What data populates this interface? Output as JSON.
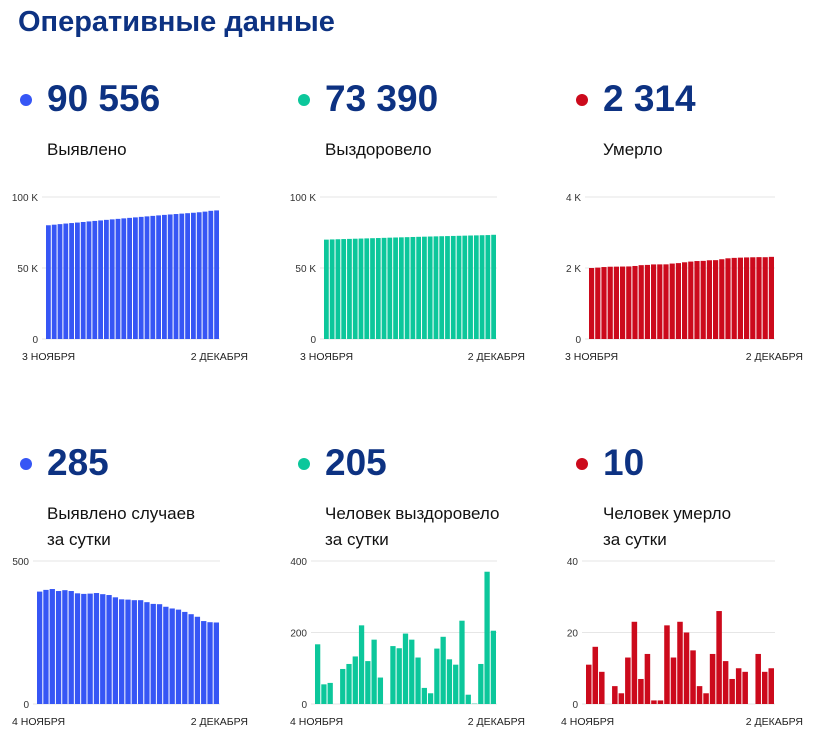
{
  "title": "Оперативные данные",
  "colors": {
    "confirmed": "#3656f5",
    "recovered": "#0cc79b",
    "deaths": "#cc0a1c",
    "title": "#0d3282"
  },
  "cards": [
    {
      "value": "90 556",
      "label": [
        "Выявлено"
      ],
      "color": "#3656f5"
    },
    {
      "value": "73 390",
      "label": [
        "Выздоровело"
      ],
      "color": "#0cc79b"
    },
    {
      "value": "2 314",
      "label": [
        "Умерло"
      ],
      "color": "#cc0a1c"
    },
    {
      "value": "285",
      "label": [
        "Выявлено случаев",
        "за сутки"
      ],
      "color": "#3656f5"
    },
    {
      "value": "205",
      "label": [
        "Человек выздоровело",
        "за сутки"
      ],
      "color": "#0cc79b"
    },
    {
      "value": "10",
      "label": [
        "Человек умерло",
        "за сутки"
      ],
      "color": "#cc0a1c"
    }
  ],
  "chart_data": [
    {
      "type": "bar",
      "title": "Выявлено",
      "color": "#3656f5",
      "ylim": [
        0,
        100000
      ],
      "yticks": [
        0,
        50000,
        100000
      ],
      "ytick_labels": [
        "0",
        "50 K",
        "100 K"
      ],
      "xlabels": [
        "3 НОЯБРЯ",
        "2 ДЕКАБРЯ"
      ],
      "values": [
        80100,
        80500,
        80900,
        81300,
        81650,
        82000,
        82400,
        82800,
        83150,
        83500,
        83900,
        84250,
        84600,
        84950,
        85300,
        85650,
        86000,
        86350,
        86700,
        87050,
        87400,
        87700,
        88000,
        88300,
        88600,
        88900,
        89250,
        89700,
        90271,
        90556
      ]
    },
    {
      "type": "bar",
      "title": "Выздоровело",
      "color": "#0cc79b",
      "ylim": [
        0,
        100000
      ],
      "yticks": [
        0,
        50000,
        100000
      ],
      "ytick_labels": [
        "0",
        "50 K",
        "100 K"
      ],
      "xlabels": [
        "3 НОЯБРЯ",
        "2 ДЕКАБРЯ"
      ],
      "values": [
        69980,
        70120,
        70250,
        70380,
        70500,
        70620,
        70740,
        70860,
        70980,
        71100,
        71230,
        71360,
        71480,
        71600,
        71720,
        71840,
        71950,
        72060,
        72170,
        72280,
        72380,
        72480,
        72580,
        72680,
        72780,
        72880,
        72980,
        73080,
        73185,
        73390
      ]
    },
    {
      "type": "bar",
      "title": "Умерло",
      "color": "#cc0a1c",
      "ylim": [
        0,
        4000
      ],
      "yticks": [
        0,
        2000,
        4000
      ],
      "ytick_labels": [
        "0",
        "2 K",
        "4 K"
      ],
      "xlabels": [
        "3 НОЯБРЯ",
        "2 ДЕКАБРЯ"
      ],
      "values": [
        2000,
        2011,
        2027,
        2036,
        2038,
        2041,
        2044,
        2057,
        2080,
        2087,
        2101,
        2102,
        2103,
        2125,
        2138,
        2161,
        2181,
        2196,
        2201,
        2218,
        2221,
        2247,
        2273,
        2285,
        2292,
        2298,
        2302,
        2306,
        2304,
        2314
      ]
    },
    {
      "type": "bar",
      "title": "Выявлено случаев за сутки",
      "color": "#3656f5",
      "ylim": [
        0,
        500
      ],
      "yticks": [
        0,
        500
      ],
      "ytick_labels": [
        "0",
        "500"
      ],
      "xlabels": [
        "4 НОЯБРЯ",
        "2 ДЕКАБРЯ"
      ],
      "values": [
        393,
        399,
        402,
        395,
        398,
        395,
        387,
        385,
        386,
        388,
        384,
        381,
        373,
        366,
        365,
        363,
        363,
        356,
        350,
        349,
        340,
        334,
        330,
        322,
        314,
        305,
        290,
        286,
        285
      ]
    },
    {
      "type": "bar",
      "title": "Человек выздоровело за сутки",
      "color": "#0cc79b",
      "ylim": [
        0,
        400
      ],
      "yticks": [
        0,
        200,
        400
      ],
      "ytick_labels": [
        "0",
        "200",
        "400"
      ],
      "xlabels": [
        "4 НОЯБРЯ",
        "2 ДЕКАБРЯ"
      ],
      "values": [
        167,
        55,
        59,
        0,
        98,
        112,
        133,
        220,
        120,
        180,
        74,
        0,
        162,
        156,
        197,
        180,
        130,
        45,
        30,
        155,
        188,
        125,
        110,
        233,
        26,
        1,
        112,
        370,
        205
      ]
    },
    {
      "type": "bar",
      "title": "Человек умерло за сутки",
      "color": "#cc0a1c",
      "ylim": [
        0,
        40
      ],
      "yticks": [
        0,
        20,
        40
      ],
      "ytick_labels": [
        "0",
        "20",
        "40"
      ],
      "xlabels": [
        "4 НОЯБРЯ",
        "2 ДЕКАБРЯ"
      ],
      "values": [
        11,
        16,
        9,
        0,
        5,
        3,
        13,
        23,
        7,
        14,
        1,
        1,
        22,
        13,
        23,
        20,
        15,
        5,
        3,
        14,
        26,
        12,
        7,
        10,
        9,
        0,
        14,
        9,
        10
      ]
    }
  ]
}
